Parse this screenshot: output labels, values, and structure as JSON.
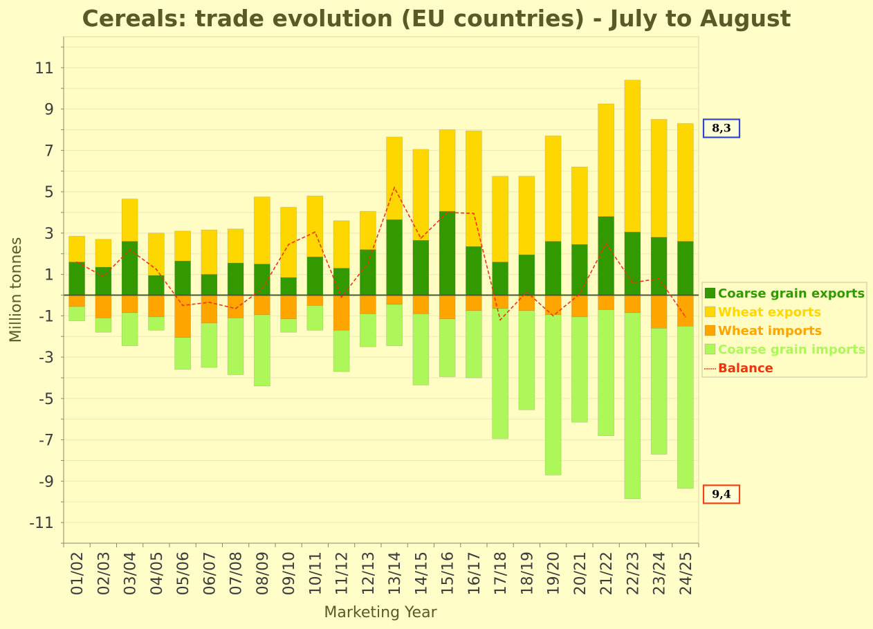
{
  "chart_data": {
    "type": "bar",
    "title": "Cereals: trade evolution (EU countries) - July to August",
    "xlabel": "Marketing Year",
    "ylabel": "Million tonnes",
    "ylim": [
      -12,
      12.5
    ],
    "yticks": [
      11,
      9,
      7,
      5,
      3,
      1,
      -1,
      -3,
      -5,
      -7,
      -9,
      -11
    ],
    "ytick_labels": [
      "11",
      "9",
      "7",
      "5",
      "3",
      "1",
      "-1",
      "-3",
      "-5",
      "-7",
      "-9",
      "-11"
    ],
    "grid": true,
    "legend_position": "right",
    "categories": [
      "01/02",
      "02/03",
      "03/04",
      "04/05",
      "05/06",
      "06/07",
      "07/08",
      "08/09",
      "09/10",
      "10/11",
      "11/12",
      "12/13",
      "13/14",
      "14/15",
      "15/16",
      "16/17",
      "17/18",
      "18/19",
      "19/20",
      "20/21",
      "21/22",
      "22/23",
      "23/24",
      "24/25"
    ],
    "series": [
      {
        "name": "Coarse grain exports",
        "color": "#339900",
        "kind": "bar",
        "values": [
          1.6,
          1.35,
          2.6,
          0.95,
          1.65,
          1.0,
          1.55,
          1.5,
          0.85,
          1.85,
          1.3,
          2.2,
          3.65,
          2.65,
          4.05,
          2.35,
          1.6,
          1.95,
          2.6,
          2.45,
          3.8,
          3.05,
          2.8,
          2.6
        ]
      },
      {
        "name": "Wheat exports",
        "color": "#ffd700",
        "kind": "bar",
        "values": [
          1.25,
          1.35,
          2.05,
          2.05,
          1.45,
          2.15,
          1.65,
          3.25,
          3.4,
          2.95,
          2.3,
          1.85,
          4.0,
          4.4,
          3.95,
          5.6,
          4.15,
          3.8,
          5.1,
          3.75,
          5.45,
          7.35,
          5.7,
          5.7
        ]
      },
      {
        "name": "Wheat imports",
        "color": "#ffa500",
        "kind": "bar",
        "values": [
          -0.55,
          -1.1,
          -0.85,
          -1.05,
          -2.05,
          -1.35,
          -1.1,
          -0.95,
          -1.15,
          -0.5,
          -1.7,
          -0.9,
          -0.45,
          -0.9,
          -1.15,
          -0.75,
          -0.65,
          -0.75,
          -0.95,
          -1.05,
          -0.7,
          -0.85,
          -1.6,
          -1.5
        ]
      },
      {
        "name": "Coarse grain imports",
        "color": "#adf75a",
        "kind": "bar",
        "values": [
          -0.7,
          -0.7,
          -1.6,
          -0.65,
          -1.55,
          -2.15,
          -2.75,
          -3.45,
          -0.65,
          -1.2,
          -2.0,
          -1.6,
          -2.0,
          -3.45,
          -2.8,
          -3.25,
          -6.3,
          -4.8,
          -7.75,
          -5.1,
          -6.1,
          -9.0,
          -6.1,
          -7.85
        ]
      },
      {
        "name": "Balance",
        "color": "#ee3311",
        "kind": "line",
        "values": [
          1.6,
          0.9,
          2.2,
          1.25,
          -0.5,
          -0.35,
          -0.65,
          0.3,
          2.45,
          3.05,
          -0.1,
          1.55,
          5.2,
          2.75,
          4.0,
          3.95,
          -1.2,
          0.15,
          -1.0,
          0.05,
          2.5,
          0.6,
          0.8,
          -1.05
        ]
      }
    ],
    "callouts": [
      {
        "text": "8,3",
        "anchor_value": 8.3,
        "border_color": "#3344cc"
      },
      {
        "text": "9,4",
        "anchor_value": -9.4,
        "border_color": "#ee4411"
      }
    ]
  }
}
